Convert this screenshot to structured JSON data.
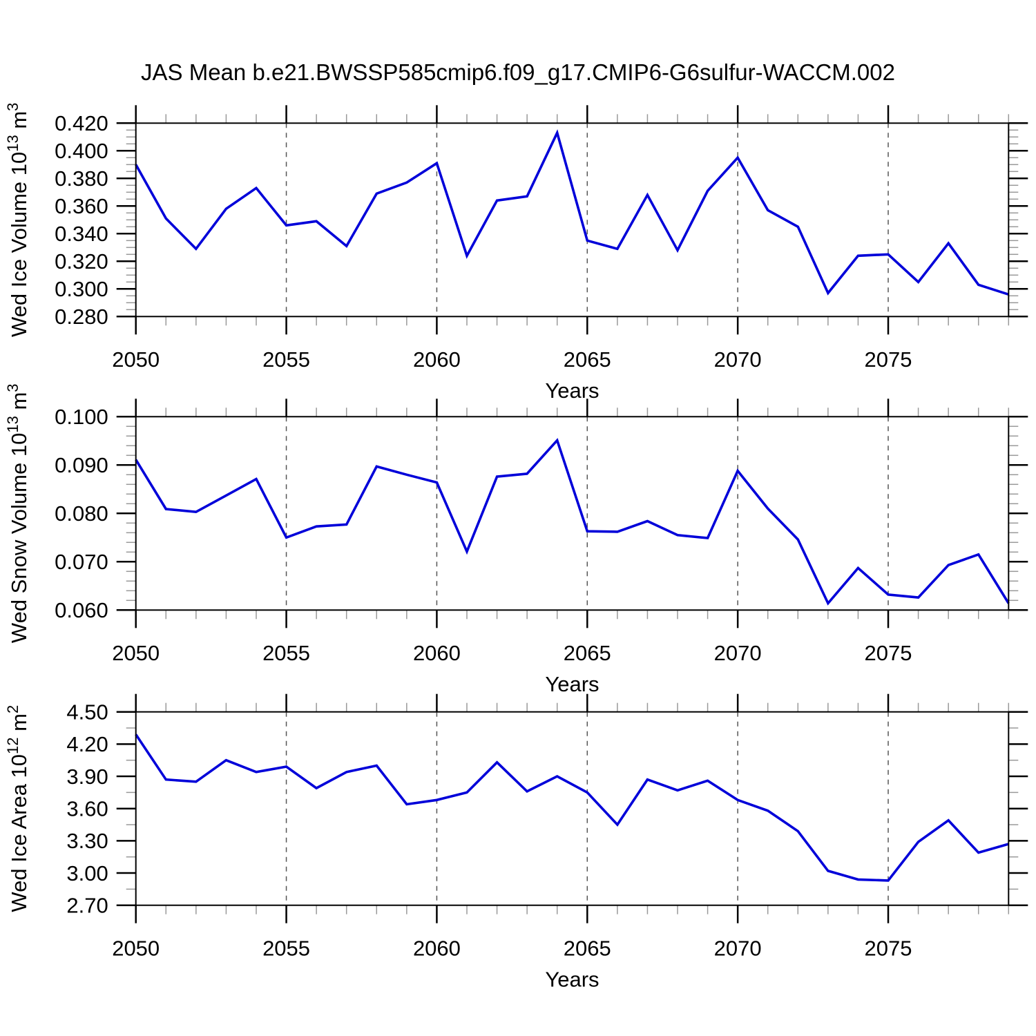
{
  "title": "JAS Mean b.e21.BWSSP585cmip6.f09_g17.CMIP6-G6sulfur-WACCM.002",
  "line_color": "#0000d9",
  "chart_data": [
    {
      "type": "line",
      "id": "ice-volume",
      "ylabel": "Wed Ice Volume 10^13 m^3",
      "ylabel_parts": [
        [
          "Wed Ice Volume 10",
          0
        ],
        [
          "13",
          1
        ],
        [
          " m",
          0
        ],
        [
          "3",
          1
        ]
      ],
      "xlabel": "Years",
      "ylim": [
        0.28,
        0.42
      ],
      "y_major_step": 0.02,
      "y_minor_step": 0.005,
      "ytick_labels": [
        "0.420",
        "0.400",
        "0.380",
        "0.360",
        "0.340",
        "0.320",
        "0.300",
        "0.280"
      ],
      "x": [
        2050,
        2051,
        2052,
        2053,
        2054,
        2055,
        2056,
        2057,
        2058,
        2059,
        2060,
        2061,
        2062,
        2063,
        2064,
        2065,
        2066,
        2067,
        2068,
        2069,
        2070,
        2071,
        2072,
        2073,
        2074,
        2075,
        2076,
        2077,
        2078,
        2079
      ],
      "values": [
        0.39,
        0.351,
        0.329,
        0.358,
        0.373,
        0.346,
        0.349,
        0.331,
        0.369,
        0.377,
        0.391,
        0.324,
        0.364,
        0.367,
        0.413,
        0.335,
        0.329,
        0.368,
        0.328,
        0.371,
        0.395,
        0.357,
        0.345,
        0.297,
        0.324,
        0.325,
        0.305,
        0.333,
        0.303,
        0.296
      ]
    },
    {
      "type": "line",
      "id": "snow-volume",
      "ylabel": "Wed Snow Volume 10^13 m^3",
      "ylabel_parts": [
        [
          "Wed Snow Volume 10",
          0
        ],
        [
          "13",
          1
        ],
        [
          " m",
          0
        ],
        [
          "3",
          1
        ]
      ],
      "xlabel": "Years",
      "ylim": [
        0.06,
        0.1
      ],
      "y_major_step": 0.01,
      "y_minor_step": 0.002,
      "ytick_labels": [
        "0.100",
        "0.090",
        "0.080",
        "0.070",
        "0.060"
      ],
      "x": [
        2050,
        2051,
        2052,
        2053,
        2054,
        2055,
        2056,
        2057,
        2058,
        2059,
        2060,
        2061,
        2062,
        2063,
        2064,
        2065,
        2066,
        2067,
        2068,
        2069,
        2070,
        2071,
        2072,
        2073,
        2074,
        2075,
        2076,
        2077,
        2078,
        2079
      ],
      "values": [
        0.0911,
        0.0809,
        0.0803,
        0.0837,
        0.0871,
        0.075,
        0.0773,
        0.0777,
        0.0897,
        0.088,
        0.0864,
        0.0721,
        0.0876,
        0.0882,
        0.0951,
        0.0763,
        0.0762,
        0.0784,
        0.0755,
        0.0749,
        0.0888,
        0.081,
        0.0746,
        0.0614,
        0.0687,
        0.0632,
        0.0626,
        0.0693,
        0.0715,
        0.0614
      ]
    },
    {
      "type": "line",
      "id": "ice-area",
      "ylabel": "Wed Ice Area 10^12 m^2",
      "ylabel_parts": [
        [
          "Wed Ice Area 10",
          0
        ],
        [
          "12",
          1
        ],
        [
          " m",
          0
        ],
        [
          "2",
          1
        ]
      ],
      "xlabel": "Years",
      "ylim": [
        2.7,
        4.5
      ],
      "y_major_step": 0.3,
      "y_minor_step": 0.15,
      "ytick_labels": [
        "4.50",
        "4.20",
        "3.90",
        "3.60",
        "3.30",
        "3.00",
        "2.70"
      ],
      "x": [
        2050,
        2051,
        2052,
        2053,
        2054,
        2055,
        2056,
        2057,
        2058,
        2059,
        2060,
        2061,
        2062,
        2063,
        2064,
        2065,
        2066,
        2067,
        2068,
        2069,
        2070,
        2071,
        2072,
        2073,
        2074,
        2075,
        2076,
        2077,
        2078,
        2079
      ],
      "values": [
        4.29,
        3.87,
        3.85,
        4.05,
        3.94,
        3.99,
        3.79,
        3.94,
        4.0,
        3.64,
        3.68,
        3.75,
        4.03,
        3.76,
        3.9,
        3.75,
        3.45,
        3.87,
        3.77,
        3.86,
        3.68,
        3.58,
        3.39,
        3.02,
        2.94,
        2.93,
        3.29,
        3.49,
        3.19,
        3.27
      ]
    }
  ],
  "x_axis": {
    "label": "Years",
    "range": [
      2050,
      2079
    ],
    "major_ticks": [
      2050,
      2055,
      2060,
      2065,
      2070,
      2075
    ],
    "major_tick_labels": [
      "2050",
      "2055",
      "2060",
      "2065",
      "2070",
      "2075"
    ],
    "minor_tick_step_years": 1,
    "gridlines_at": [
      2055,
      2060,
      2065,
      2070,
      2075
    ]
  }
}
